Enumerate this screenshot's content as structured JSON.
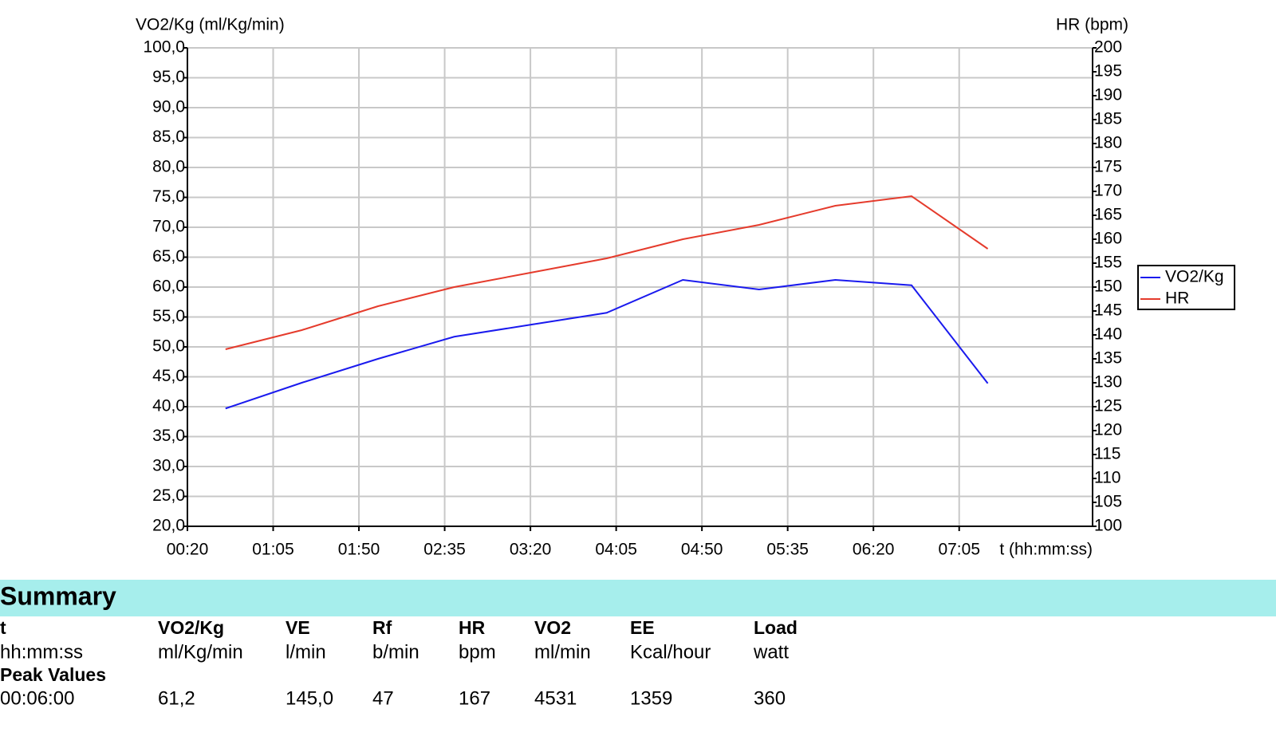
{
  "chart_data": {
    "type": "line",
    "y_title": "VO2/Kg (ml/Kg/min)",
    "y2_title": "HR (bpm)",
    "x_title": "t (hh:mm:ss)",
    "x": [
      40,
      80,
      120,
      160,
      200,
      240,
      280,
      320,
      360,
      400,
      440
    ],
    "xlim": [
      20,
      495
    ],
    "xticks": [
      {
        "value": 20,
        "label": "00:20"
      },
      {
        "value": 65,
        "label": "01:05"
      },
      {
        "value": 110,
        "label": "01:50"
      },
      {
        "value": 155,
        "label": "02:35"
      },
      {
        "value": 200,
        "label": "03:20"
      },
      {
        "value": 245,
        "label": "04:05"
      },
      {
        "value": 290,
        "label": "04:50"
      },
      {
        "value": 335,
        "label": "05:35"
      },
      {
        "value": 380,
        "label": "06:20"
      },
      {
        "value": 425,
        "label": "07:05"
      }
    ],
    "ylim": [
      20,
      100
    ],
    "yticks": [
      {
        "value": 20,
        "label": "20,0"
      },
      {
        "value": 25,
        "label": "25,0"
      },
      {
        "value": 30,
        "label": "30,0"
      },
      {
        "value": 35,
        "label": "35,0"
      },
      {
        "value": 40,
        "label": "40,0"
      },
      {
        "value": 45,
        "label": "45,0"
      },
      {
        "value": 50,
        "label": "50,0"
      },
      {
        "value": 55,
        "label": "55,0"
      },
      {
        "value": 60,
        "label": "60,0"
      },
      {
        "value": 65,
        "label": "65,0"
      },
      {
        "value": 70,
        "label": "70,0"
      },
      {
        "value": 75,
        "label": "75,0"
      },
      {
        "value": 80,
        "label": "80,0"
      },
      {
        "value": 85,
        "label": "85,0"
      },
      {
        "value": 90,
        "label": "90,0"
      },
      {
        "value": 95,
        "label": "95,0"
      },
      {
        "value": 100,
        "label": "100,0"
      }
    ],
    "y2lim": [
      100,
      200
    ],
    "y2ticks": [
      100,
      105,
      110,
      115,
      120,
      125,
      130,
      135,
      140,
      145,
      150,
      155,
      160,
      165,
      170,
      175,
      180,
      185,
      190,
      195,
      200
    ],
    "grid": true,
    "legend": "right",
    "series": [
      {
        "name": "VO2/Kg",
        "color": "#1a1aee",
        "values": [
          39.7,
          44.0,
          48.0,
          51.7,
          53.7,
          55.7,
          61.2,
          59.6,
          61.2,
          60.3,
          43.9
        ]
      },
      {
        "name": "HR",
        "color": "#e53b2c",
        "axis": "y2",
        "values": [
          137,
          141,
          146,
          150,
          153,
          156,
          160,
          163,
          167,
          169,
          158
        ]
      }
    ]
  },
  "summary": {
    "title": "Summary",
    "columns": [
      {
        "name": "t",
        "unit": "hh:mm:ss"
      },
      {
        "name": "VO2/Kg",
        "unit": "ml/Kg/min"
      },
      {
        "name": "VE",
        "unit": "l/min"
      },
      {
        "name": "Rf",
        "unit": "b/min"
      },
      {
        "name": "HR",
        "unit": "bpm"
      },
      {
        "name": "VO2",
        "unit": "ml/min"
      },
      {
        "name": "EE",
        "unit": "Kcal/hour"
      },
      {
        "name": "Load",
        "unit": "watt"
      }
    ],
    "row_label": "Peak Values",
    "values": [
      "00:06:00",
      "61,2",
      "145,0",
      "47",
      "167",
      "4531",
      "1359",
      "360"
    ]
  }
}
